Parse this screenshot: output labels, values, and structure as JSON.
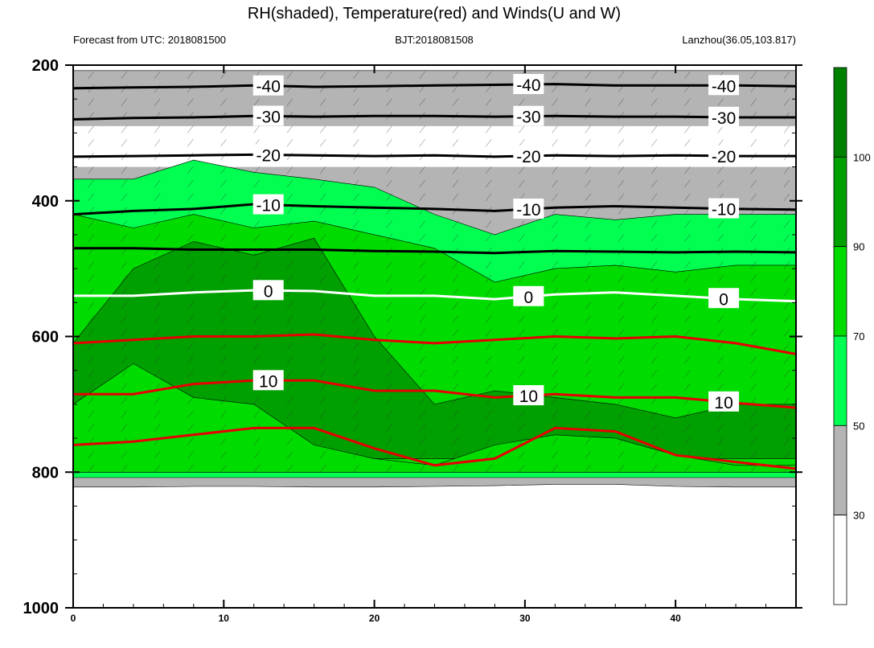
{
  "chart_data": {
    "type": "contour",
    "title": "RH(shaded), Temperature(red) and Winds(U and W)",
    "subtitle_left": "Forecast from UTC: 2018081500",
    "subtitle_center": "BJT:2018081508",
    "subtitle_right": "Lanzhou(36.05,103.817)",
    "x_range": [
      0,
      48
    ],
    "x_ticks": [
      0,
      10,
      20,
      30,
      40
    ],
    "y_range": [
      200,
      1000
    ],
    "y_ticks": [
      200,
      400,
      600,
      800,
      1000
    ],
    "y_minor_ticks": [
      250,
      300,
      350,
      450,
      500,
      550,
      650,
      700,
      750,
      850,
      900,
      950
    ],
    "colorbar": {
      "levels": [
        30,
        50,
        70,
        90,
        100
      ],
      "colors": [
        "#ffffff",
        "#b4b4b4",
        "#00ff50",
        "#00dc00",
        "#00a000",
        "#008000"
      ]
    },
    "rh_levels": {
      "x": [
        0,
        4,
        8,
        12,
        16,
        20,
        24,
        28,
        32,
        36,
        40,
        44,
        48
      ],
      "bottom": [
        822,
        822,
        821,
        821,
        822,
        822,
        821,
        820,
        818,
        818,
        821,
        822,
        822
      ],
      "ge50": [
        808,
        808,
        808,
        808,
        808,
        808,
        808,
        808,
        808,
        808,
        808,
        808,
        808
      ],
      "gt30_top": [
        208,
        208,
        208,
        208,
        208,
        208,
        208,
        208,
        208,
        208,
        208,
        208,
        208
      ],
      "ge50_top": [
        368,
        368,
        340,
        358,
        368,
        380,
        420,
        450,
        420,
        428,
        420,
        420,
        420
      ],
      "ge70_top": [
        420,
        440,
        420,
        440,
        430,
        450,
        470,
        520,
        500,
        495,
        505,
        495,
        495
      ],
      "ge90_top": [
        610,
        500,
        460,
        480,
        455,
        600,
        700,
        680,
        690,
        700,
        720,
        700,
        700
      ],
      "ge100_top": [
        700,
        640,
        690,
        700,
        760,
        780,
        790,
        760,
        745,
        750,
        775,
        790,
        790
      ]
    },
    "temperature_contours": [
      {
        "label": "-40",
        "color": "#000000",
        "y": [
          234,
          233,
          232,
          230,
          232,
          231,
          230,
          229,
          228,
          230,
          230,
          230,
          231
        ]
      },
      {
        "label": "-30",
        "color": "#000000",
        "y": [
          280,
          278,
          277,
          275,
          276,
          275,
          275,
          276,
          275,
          276,
          276,
          277,
          277
        ]
      },
      {
        "label": "-20",
        "color": "#000000",
        "y": [
          335,
          334,
          333,
          332,
          333,
          334,
          333,
          335,
          333,
          334,
          333,
          334,
          334
        ]
      },
      {
        "label": "-10",
        "color": "#000000",
        "y": [
          420,
          415,
          412,
          405,
          408,
          410,
          412,
          415,
          410,
          408,
          410,
          412,
          413
        ]
      },
      {
        "label": "",
        "color": "#000000",
        "y": [
          470,
          470,
          472,
          472,
          472,
          474,
          475,
          477,
          474,
          475,
          476,
          475,
          476
        ]
      },
      {
        "label": "0",
        "color": "#ffffff",
        "y": [
          540,
          540,
          535,
          532,
          533,
          540,
          540,
          545,
          538,
          535,
          540,
          545,
          548
        ]
      },
      {
        "label": "",
        "color": "#e60000",
        "y": [
          610,
          605,
          600,
          600,
          597,
          605,
          610,
          605,
          600,
          603,
          600,
          610,
          626
        ]
      },
      {
        "label": "10",
        "color": "#e60000",
        "y": [
          685,
          685,
          670,
          665,
          665,
          680,
          680,
          690,
          685,
          690,
          690,
          698,
          705
        ]
      },
      {
        "label": "",
        "color": "#e60000",
        "y": [
          760,
          755,
          745,
          735,
          735,
          765,
          790,
          780,
          735,
          740,
          775,
          785,
          795
        ]
      }
    ]
  }
}
